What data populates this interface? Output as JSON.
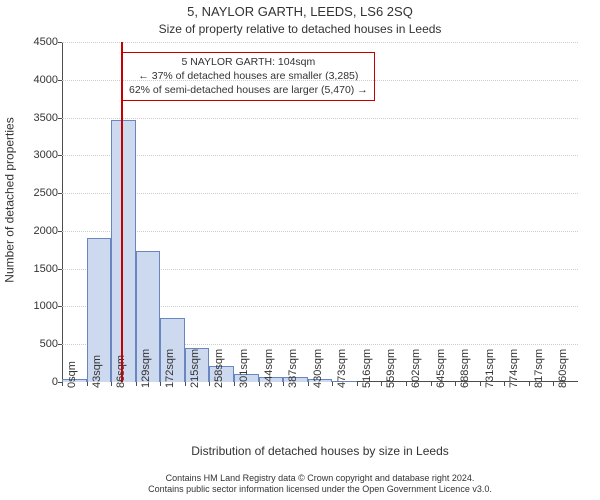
{
  "chart": {
    "type": "histogram",
    "title": "5, NAYLOR GARTH, LEEDS, LS6 2SQ",
    "subtitle": "Size of property relative to detached houses in Leeds",
    "ylabel": "Number of detached properties",
    "xlabel": "Distribution of detached houses by size in Leeds",
    "background_color": "#ffffff",
    "grid_color": "#cccccc",
    "axis_color": "#4d4d4d",
    "text_color": "#333333",
    "bar_fill": "#cdd9ef",
    "bar_stroke": "#6a86bf",
    "marker_color": "#c40000",
    "annotation_border": "#c40000",
    "ylim": [
      0,
      4500
    ],
    "ytick_step": 500,
    "yticks": [
      0,
      500,
      1000,
      1500,
      2000,
      2500,
      3000,
      3500,
      4000,
      4500
    ],
    "xtick_labels": [
      "0sqm",
      "43sqm",
      "86sqm",
      "129sqm",
      "172sqm",
      "215sqm",
      "258sqm",
      "301sqm",
      "344sqm",
      "387sqm",
      "430sqm",
      "473sqm",
      "516sqm",
      "559sqm",
      "602sqm",
      "645sqm",
      "688sqm",
      "731sqm",
      "774sqm",
      "817sqm",
      "860sqm"
    ],
    "xtick_positions": [
      0,
      43,
      86,
      129,
      172,
      215,
      258,
      301,
      344,
      387,
      430,
      473,
      516,
      559,
      602,
      645,
      688,
      731,
      774,
      817,
      860
    ],
    "x_range": [
      0,
      903
    ],
    "bars": [
      {
        "x0": 0,
        "x1": 43,
        "value": 40
      },
      {
        "x0": 43,
        "x1": 86,
        "value": 1900
      },
      {
        "x0": 86,
        "x1": 129,
        "value": 3470
      },
      {
        "x0": 129,
        "x1": 172,
        "value": 1740
      },
      {
        "x0": 172,
        "x1": 215,
        "value": 850
      },
      {
        "x0": 215,
        "x1": 258,
        "value": 450
      },
      {
        "x0": 258,
        "x1": 301,
        "value": 215
      },
      {
        "x0": 301,
        "x1": 344,
        "value": 110
      },
      {
        "x0": 344,
        "x1": 387,
        "value": 60
      },
      {
        "x0": 387,
        "x1": 430,
        "value": 60
      },
      {
        "x0": 430,
        "x1": 473,
        "value": 40
      },
      {
        "x0": 473,
        "x1": 516,
        "value": 15
      }
    ],
    "marker_x": 104,
    "annotation": {
      "line1": "5 NAYLOR GARTH: 104sqm",
      "line2": "← 37% of detached houses are smaller (3,285)",
      "line3": "62% of semi-detached houses are larger (5,470) →"
    },
    "title_fontsize": 13,
    "subtitle_fontsize": 12,
    "label_fontsize": 12,
    "tick_fontsize": 11,
    "annotation_fontsize": 10.5,
    "attribution_fontsize": 9
  },
  "attribution": {
    "line1": "Contains HM Land Registry data © Crown copyright and database right 2024.",
    "line2": "Contains public sector information licensed under the Open Government Licence v3.0."
  }
}
